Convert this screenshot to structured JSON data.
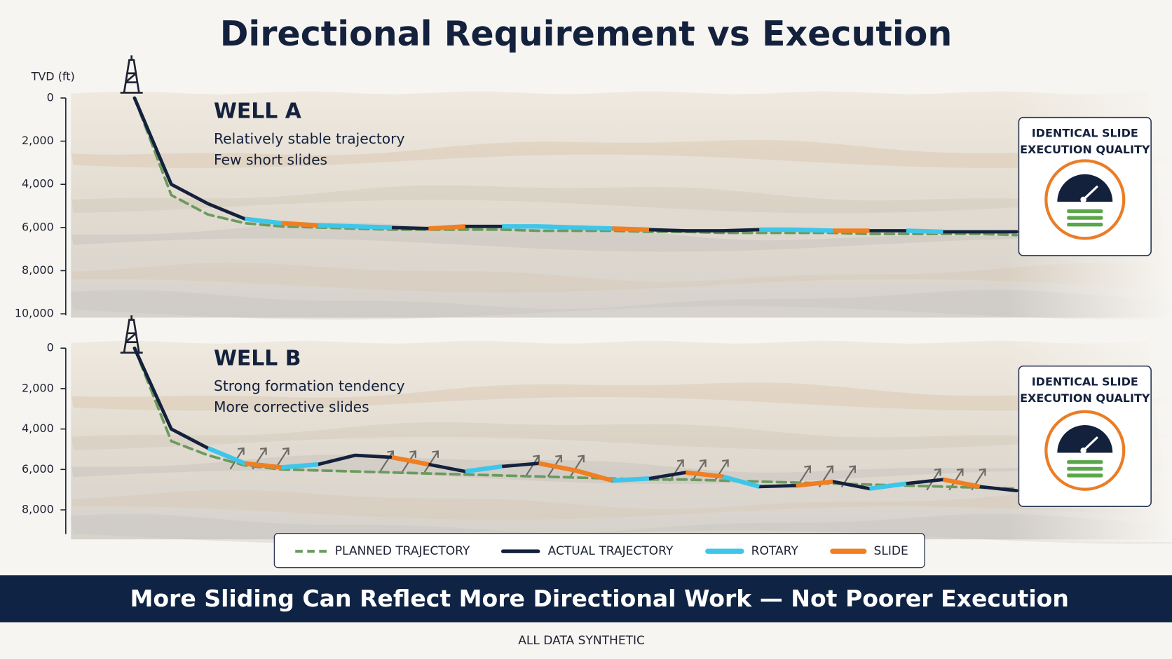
{
  "title": "Directional Requirement vs Execution",
  "headline": "More Sliding Can Reflect More Directional Work — Not Poorer Execution",
  "footnote": "ALL DATA SYNTHETIC",
  "chart_data": [
    {
      "type": "line",
      "title": "WELL A",
      "notes": [
        "Relatively stable trajectory",
        "Few short slides"
      ],
      "badge": [
        "IDENTICAL SLIDE",
        "EXECUTION QUALITY"
      ],
      "ylabel": "TVD (ft)",
      "ylim": [
        0,
        10000
      ],
      "yticks": [
        0,
        {
          "value": 2000,
          "label": "2,000"
        },
        {
          "value": 4000,
          "label": "4,000"
        },
        {
          "value": 6000,
          "label": "6,000"
        },
        {
          "value": 8000,
          "label": "8,000"
        },
        {
          "value": 10000,
          "label": "10,000"
        }
      ],
      "categories": [
        null,
        null,
        null,
        null,
        null,
        null,
        null,
        null,
        null,
        null,
        null,
        null,
        null,
        null,
        null,
        null,
        null,
        null,
        null,
        null,
        null,
        null,
        null,
        null,
        null
      ],
      "series": [
        {
          "name": "PLANNED TRAJECTORY",
          "color": "#6b9a5e",
          "values": [
            0,
            4500,
            5400,
            5800,
            5950,
            6000,
            6050,
            6100,
            6100,
            6100,
            6100,
            6150,
            6150,
            6150,
            6200,
            6200,
            6250,
            6250,
            6250,
            6250,
            6300,
            6300,
            6300,
            6300,
            6350
          ]
        },
        {
          "name": "ACTUAL TRAJECTORY",
          "color": "#14213d",
          "values": [
            0,
            4000,
            4900,
            5600,
            5800,
            5900,
            5950,
            6000,
            6050,
            5950,
            5950,
            5950,
            6000,
            6050,
            6100,
            6150,
            6150,
            6100,
            6100,
            6150,
            6150,
            6150,
            6200,
            6200,
            6200
          ]
        },
        {
          "name": "ROTARY",
          "color": "#3ec6ea",
          "values": [
            null,
            null,
            null,
            5600,
            5800,
            5900,
            5950,
            6000,
            null,
            null,
            5950,
            5950,
            6000,
            6050,
            null,
            null,
            null,
            6100,
            6100,
            6150,
            null,
            6150,
            6200,
            null,
            null
          ]
        },
        {
          "name": "SLIDE",
          "color": "#f07f22",
          "values": [
            null,
            null,
            null,
            null,
            5800,
            5900,
            null,
            null,
            6050,
            5950,
            null,
            null,
            null,
            6050,
            6100,
            null,
            null,
            null,
            null,
            6150,
            6150,
            null,
            null,
            null,
            null
          ]
        }
      ]
    },
    {
      "type": "line",
      "title": "WELL B",
      "notes": [
        "Strong formation tendency",
        "More corrective slides"
      ],
      "badge": [
        "IDENTICAL SLIDE",
        "EXECUTION QUALITY"
      ],
      "ylim": [
        0,
        9200
      ],
      "yticks": [
        0,
        {
          "value": 2000,
          "label": "2,000"
        },
        {
          "value": 4000,
          "label": "4,000"
        },
        {
          "value": 6000,
          "label": "6,000"
        },
        {
          "value": 8000,
          "label": "8,000"
        }
      ],
      "categories": [
        null,
        null,
        null,
        null,
        null,
        null,
        null,
        null,
        null,
        null,
        null,
        null,
        null,
        null,
        null,
        null,
        null,
        null,
        null,
        null,
        null,
        null,
        null,
        null,
        null
      ],
      "series": [
        {
          "color": "#6b9a5e",
          "values": [
            0,
            4600,
            5300,
            5800,
            6000,
            6050,
            6100,
            6150,
            6200,
            6250,
            6300,
            6350,
            6400,
            6450,
            6500,
            6500,
            6550,
            6600,
            6650,
            6700,
            6750,
            6800,
            6850,
            6900,
            6950
          ]
        },
        {
          "color": "#14213d",
          "values": [
            0,
            4000,
            4950,
            5700,
            5900,
            5750,
            5300,
            5400,
            5750,
            6100,
            5850,
            5700,
            6050,
            6550,
            6450,
            6150,
            6350,
            6850,
            6800,
            6600,
            6950,
            6700,
            6500,
            6850,
            7050
          ]
        },
        {
          "color": "#3ec6ea",
          "values": [
            null,
            null,
            4950,
            5700,
            5900,
            5750,
            null,
            null,
            null,
            6100,
            5850,
            null,
            null,
            6550,
            6450,
            null,
            6350,
            6850,
            null,
            null,
            6950,
            6700,
            null,
            null,
            null
          ]
        },
        {
          "color": "#f07f22",
          "values": [
            null,
            null,
            null,
            5700,
            5900,
            null,
            null,
            5400,
            5750,
            null,
            null,
            5700,
            6050,
            6550,
            null,
            6150,
            6350,
            null,
            6800,
            6600,
            null,
            null,
            6500,
            6850,
            null
          ]
        }
      ]
    }
  ]
}
